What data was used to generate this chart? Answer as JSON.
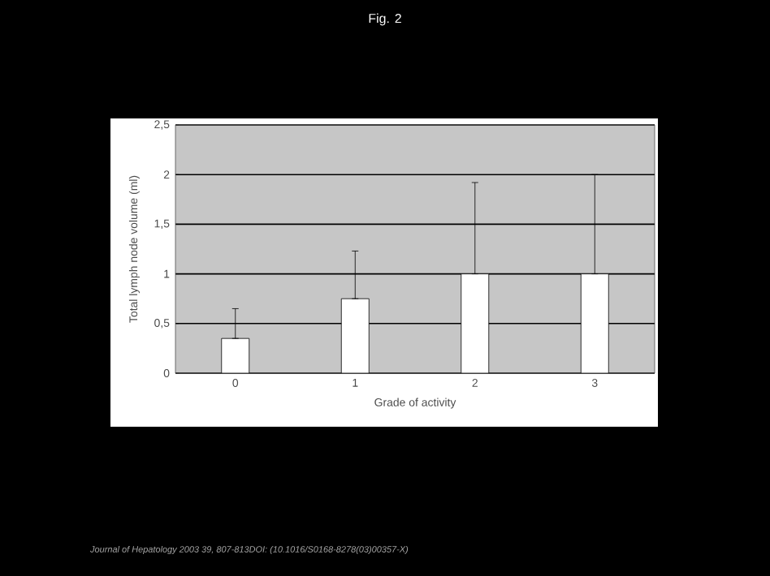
{
  "chart_data": {
    "type": "bar",
    "title": "Fig. 2",
    "xlabel": "Grade of activity",
    "ylabel": "Total lymph node volume (ml)",
    "categories": [
      "0",
      "1",
      "2",
      "3"
    ],
    "values": [
      0.35,
      0.75,
      1.0,
      1.0
    ],
    "errors": [
      [
        0.35,
        0.65
      ],
      [
        0.75,
        1.23
      ],
      [
        1.0,
        1.92
      ],
      [
        1.0,
        2.0
      ]
    ],
    "color": "#ffffff",
    "ylim": [
      0,
      2.5
    ],
    "yticks": [
      0,
      {
        "value": 0.5,
        "label": "0,5"
      },
      1,
      {
        "value": 1.5,
        "label": "1,5"
      },
      2,
      {
        "value": 2.5,
        "label": "2,5"
      }
    ],
    "grid": "y",
    "annotations": [
      "Journal of Hepatology 2003 39, 807-813DOI: (10.1016/S0168-8278(03)00357-X)"
    ]
  }
}
